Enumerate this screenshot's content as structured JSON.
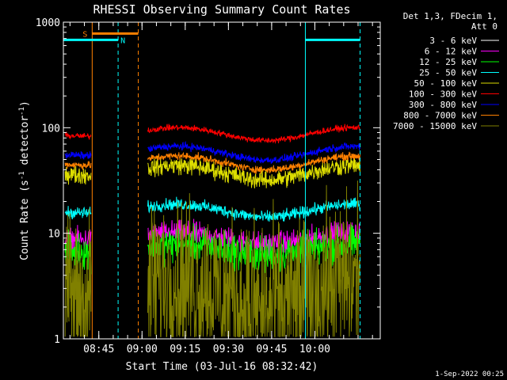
{
  "chart_data": {
    "type": "line",
    "title": "RHESSI Observing Summary Count Rates",
    "xlabel": "Start Time (03-Jul-16 08:32:42)",
    "ylabel_main": "Count Rate (s",
    "ylabel_sup1": "-1",
    "ylabel_mid": " detector",
    "ylabel_sup2": "-1",
    "ylabel_end": ")",
    "yscale": "log",
    "ylim": [
      1,
      1000
    ],
    "xlim_minutes": [
      0,
      110
    ],
    "y_ticks": [
      {
        "value": 1,
        "label": "1"
      },
      {
        "value": 10,
        "label": "10"
      },
      {
        "value": 100,
        "label": "100"
      },
      {
        "value": 1000,
        "label": "1000"
      }
    ],
    "x_ticks": [
      {
        "minute": 12.3,
        "label": "08:45"
      },
      {
        "minute": 27.3,
        "label": "09:00"
      },
      {
        "minute": 42.3,
        "label": "09:15"
      },
      {
        "minute": 57.3,
        "label": "09:30"
      },
      {
        "minute": 72.3,
        "label": "09:45"
      },
      {
        "minute": 87.3,
        "label": "10:00"
      }
    ],
    "legend_header": [
      "Det 1,3, FDecim 1,",
      "Att 0"
    ],
    "series": [
      {
        "name": "3 - 6 keV",
        "color": "#000000",
        "base": 3.2,
        "amp": 0.3,
        "noise": 0.45
      },
      {
        "name": "6 - 12 keV",
        "color": "#ff00ff",
        "base": 9.0,
        "amp": 0.12,
        "noise": 0.08
      },
      {
        "name": "12 - 25 keV",
        "color": "#00ff00",
        "base": 7.0,
        "amp": 0.12,
        "noise": 0.12
      },
      {
        "name": "25 - 50 keV",
        "color": "#00ffff",
        "base": 16.5,
        "amp": 0.14,
        "noise": 0.04
      },
      {
        "name": "50 - 100 keV",
        "color": "#dddd00",
        "base": 38,
        "amp": 0.16,
        "noise": 0.06
      },
      {
        "name": "100 - 300 keV",
        "color": "#ff0000",
        "base": 88,
        "amp": 0.14,
        "noise": 0.02
      },
      {
        "name": "300 - 800 keV",
        "color": "#0000ff",
        "base": 58,
        "amp": 0.15,
        "noise": 0.025
      },
      {
        "name": "800 - 7000 keV",
        "color": "#ff8000",
        "base": 47,
        "amp": 0.15,
        "noise": 0.025
      },
      {
        "name": "7000 - 15000 keV",
        "color": "#808000",
        "base": 2.8,
        "amp": 0.3,
        "noise": 0.55
      }
    ],
    "data_gap_minutes": [
      10,
      29
    ],
    "saa_bar": {
      "label": "S",
      "start_minute": 10,
      "end_minute": 26,
      "value": 780,
      "color": "#ff8000"
    },
    "night_bars": [
      {
        "label": "N",
        "start_minute": 0,
        "end_minute": 19,
        "value": 680,
        "color": "#00ffff"
      },
      {
        "start_minute": 84,
        "end_minute": 103,
        "value": 680,
        "color": "#00ffff"
      }
    ],
    "vlines": [
      {
        "minute": 10,
        "color": "#ff8000",
        "style": "solid"
      },
      {
        "minute": 19,
        "color": "#00ffff",
        "style": "dashed"
      },
      {
        "minute": 26,
        "color": "#ff8000",
        "style": "dashed"
      },
      {
        "minute": 84,
        "color": "#00ffff",
        "style": "solid"
      },
      {
        "minute": 103,
        "color": "#00ffff",
        "style": "dashed"
      }
    ],
    "footer": "1-Sep-2022 00:25"
  }
}
